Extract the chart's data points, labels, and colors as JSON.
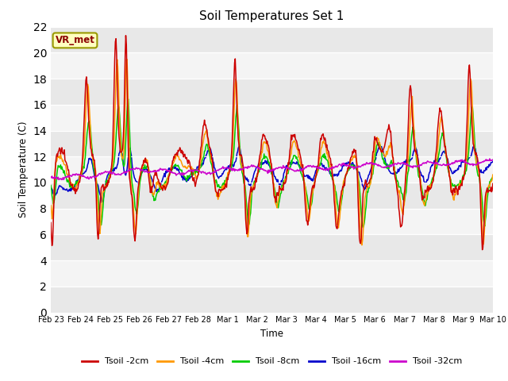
{
  "title": "Soil Temperatures Set 1",
  "xlabel": "Time",
  "ylabel": "Soil Temperature (C)",
  "ylim": [
    0,
    22
  ],
  "yticks": [
    0,
    2,
    4,
    6,
    8,
    10,
    12,
    14,
    16,
    18,
    20,
    22
  ],
  "annotation_text": "VR_met",
  "annotation_box_color": "#ffffc0",
  "annotation_border_color": "#999900",
  "series_colors": {
    "Tsoil -2cm": "#cc0000",
    "Tsoil -4cm": "#ff9900",
    "Tsoil -8cm": "#00cc00",
    "Tsoil -16cm": "#0000cc",
    "Tsoil -32cm": "#cc00cc"
  },
  "date_labels": [
    "Feb 23",
    "Feb 24",
    "Feb 25",
    "Feb 26",
    "Feb 27",
    "Feb 28",
    "Mar 1",
    "Mar 2",
    "Mar 3",
    "Mar 4",
    "Mar 5",
    "Mar 6",
    "Mar 7",
    "Mar 8",
    "Mar 9",
    "Mar 10"
  ],
  "date_positions": [
    0,
    1,
    2,
    3,
    4,
    5,
    6,
    7,
    8,
    9,
    10,
    11,
    12,
    13,
    14,
    15
  ],
  "band_colors": [
    "#e8e8e8",
    "#f4f4f4"
  ],
  "fig_facecolor": "#ffffff",
  "plot_facecolor": "#e8e8e8"
}
